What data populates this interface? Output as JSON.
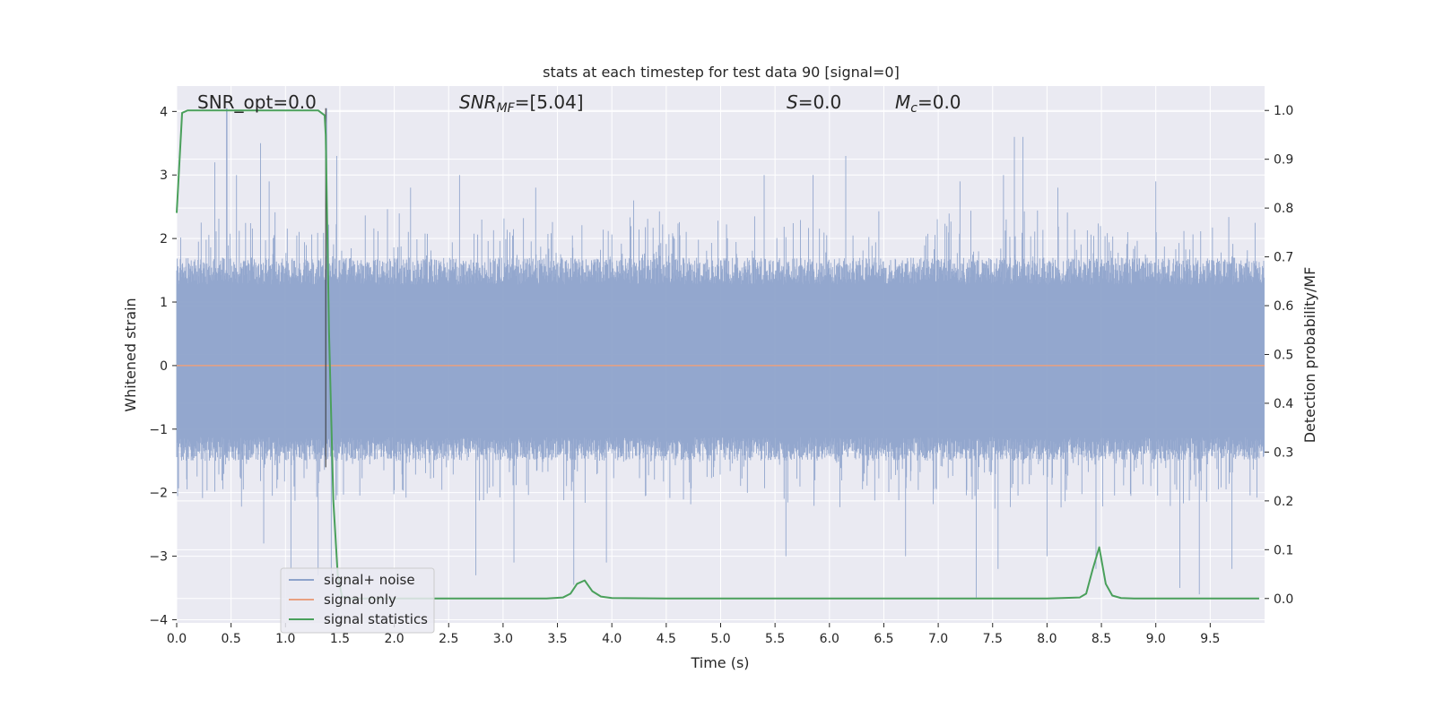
{
  "chart_data": {
    "type": "line",
    "title": "stats at each timestep for test data 90 [signal=0]",
    "xlabel": "Time (s)",
    "ylabel_left": "Whitened strain",
    "ylabel_right": "Detection probability/MF",
    "xlim": [
      0,
      10
    ],
    "ylim_left": [
      -4.05,
      4.4
    ],
    "ylim_right": [
      -0.05,
      1.05
    ],
    "x_ticks": [
      0.0,
      0.5,
      1.0,
      1.5,
      2.0,
      2.5,
      3.0,
      3.5,
      4.0,
      4.5,
      5.0,
      5.5,
      6.0,
      6.5,
      7.0,
      7.5,
      8.0,
      8.5,
      9.0,
      9.5
    ],
    "x_tick_labels": [
      "0.0",
      "0.5",
      "1.0",
      "1.5",
      "2.0",
      "2.5",
      "3.0",
      "3.5",
      "4.0",
      "4.5",
      "5.0",
      "5.5",
      "6.0",
      "6.5",
      "7.0",
      "7.5",
      "8.0",
      "8.5",
      "9.0",
      "9.5"
    ],
    "y_left_ticks": [
      4,
      3,
      2,
      1,
      0,
      -1,
      -2,
      -3,
      -4
    ],
    "y_left_tick_labels": [
      "4",
      "3",
      "2",
      "1",
      "0",
      "−1",
      "−2",
      "−3",
      "−4"
    ],
    "y_right_ticks": [
      1.0,
      0.9,
      0.8,
      0.7,
      0.6,
      0.5,
      0.4,
      0.3,
      0.2,
      0.1,
      0.0
    ],
    "y_right_tick_labels": [
      "1.0",
      "0.9",
      "0.8",
      "0.7",
      "0.6",
      "0.5",
      "0.4",
      "0.3",
      "0.2",
      "0.1",
      "0.0"
    ],
    "grid": true,
    "annotations": {
      "snr_opt": "SNR_opt=0.0",
      "snr_mf_sym": "SNR",
      "snr_mf_sub": "MF",
      "snr_mf_val": "=[5.04]",
      "s_sym": "S",
      "s_val": "=0.0",
      "mc_sym": "M",
      "mc_sub": "c",
      "mc_val": "=0.0"
    },
    "vline_x": 1.37,
    "noise_envelope": {
      "typical_min": -1.5,
      "typical_max": 1.7,
      "spikes": [
        [
          0.35,
          3.2
        ],
        [
          0.46,
          4.05
        ],
        [
          0.55,
          3.0
        ],
        [
          0.77,
          3.5
        ],
        [
          0.85,
          2.9
        ],
        [
          1.38,
          4.05
        ],
        [
          1.47,
          3.3
        ],
        [
          2.15,
          2.8
        ],
        [
          2.6,
          3.0
        ],
        [
          3.3,
          2.8
        ],
        [
          4.2,
          2.6
        ],
        [
          5.4,
          3.0
        ],
        [
          5.85,
          3.0
        ],
        [
          6.15,
          3.3
        ],
        [
          7.2,
          2.9
        ],
        [
          7.6,
          3.0
        ],
        [
          7.7,
          3.6
        ],
        [
          7.78,
          3.6
        ],
        [
          8.1,
          2.8
        ],
        [
          9.0,
          2.9
        ],
        [
          0.8,
          -2.8
        ],
        [
          1.05,
          -3.2
        ],
        [
          1.3,
          -3.3
        ],
        [
          1.42,
          -3.4
        ],
        [
          2.75,
          -3.3
        ],
        [
          3.1,
          -3.1
        ],
        [
          3.65,
          -3.45
        ],
        [
          3.95,
          -3.1
        ],
        [
          5.6,
          -3.0
        ],
        [
          6.7,
          -3.0
        ],
        [
          7.35,
          -3.65
        ],
        [
          7.55,
          -3.2
        ],
        [
          8.0,
          -3.0
        ],
        [
          8.45,
          -3.2
        ],
        [
          9.22,
          -3.5
        ],
        [
          9.4,
          -3.6
        ],
        [
          9.7,
          -3.2
        ]
      ]
    },
    "series": [
      {
        "name": "signal+ noise",
        "color": "#8ea3cb",
        "axis": "left",
        "kind": "noise"
      },
      {
        "name": "signal only",
        "color": "#e8a080",
        "axis": "left",
        "x": [
          0,
          10
        ],
        "y": [
          0,
          0
        ]
      },
      {
        "name": "signal statistics",
        "color": "#4aa05b",
        "axis": "right",
        "x": [
          0.0,
          0.05,
          0.1,
          0.2,
          0.4,
          0.6,
          0.8,
          1.0,
          1.2,
          1.3,
          1.36,
          1.37,
          1.4,
          1.44,
          1.48,
          1.52,
          1.6,
          2.0,
          2.5,
          3.0,
          3.4,
          3.55,
          3.62,
          3.68,
          3.75,
          3.82,
          3.9,
          4.0,
          4.5,
          5.0,
          6.0,
          7.0,
          8.0,
          8.3,
          8.36,
          8.42,
          8.48,
          8.54,
          8.6,
          8.68,
          8.8,
          9.0,
          9.5,
          9.95
        ],
        "y": [
          0.79,
          0.995,
          1.0,
          1.0,
          1.0,
          1.0,
          1.0,
          1.0,
          1.0,
          1.0,
          0.99,
          0.95,
          0.55,
          0.2,
          0.05,
          0.003,
          0.0,
          0.0,
          0.0,
          0.0,
          0.0,
          0.002,
          0.01,
          0.03,
          0.037,
          0.015,
          0.004,
          0.001,
          0.0,
          0.0,
          0.0,
          0.0,
          0.0,
          0.002,
          0.01,
          0.06,
          0.105,
          0.03,
          0.006,
          0.001,
          0.0,
          0.0,
          0.0,
          0.0
        ]
      }
    ],
    "legend": {
      "position": "lower-left"
    }
  }
}
